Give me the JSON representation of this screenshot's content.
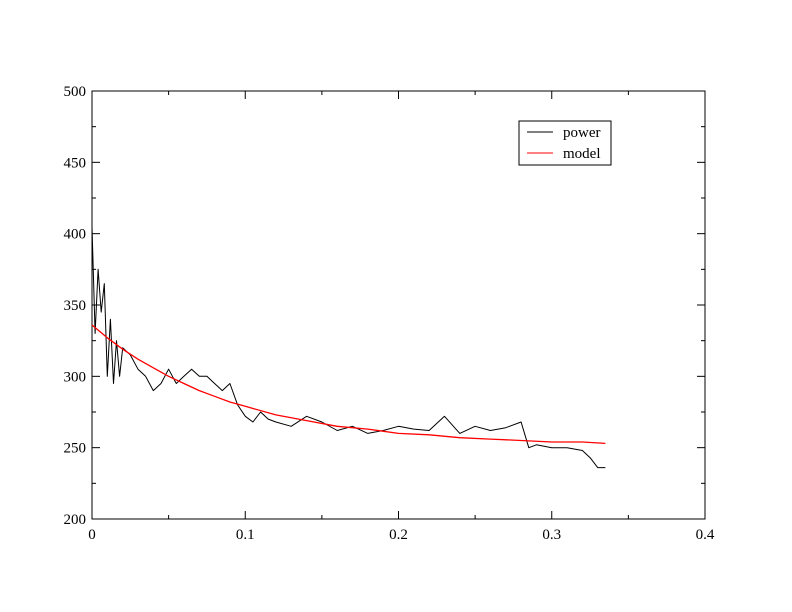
{
  "chart_data": {
    "type": "line",
    "title": "",
    "xlabel": "",
    "ylabel": "",
    "xlim": [
      0,
      0.4
    ],
    "ylim": [
      200,
      500
    ],
    "x_ticks": [
      0,
      0.1,
      0.2,
      0.3,
      0.4
    ],
    "y_ticks": [
      200,
      250,
      300,
      350,
      400,
      450,
      500
    ],
    "x_tick_labels": [
      "0",
      "0.1",
      "0.2",
      "0.3",
      "0.4"
    ],
    "y_tick_labels": [
      "200",
      "250",
      "300",
      "350",
      "400",
      "450",
      "500"
    ],
    "grid": false,
    "legend_position": "top-right",
    "series": [
      {
        "name": "power",
        "color": "#000000",
        "x": [
          0.0,
          0.002,
          0.004,
          0.006,
          0.008,
          0.01,
          0.012,
          0.014,
          0.016,
          0.018,
          0.02,
          0.025,
          0.03,
          0.035,
          0.04,
          0.045,
          0.05,
          0.055,
          0.06,
          0.065,
          0.07,
          0.075,
          0.08,
          0.085,
          0.09,
          0.095,
          0.1,
          0.105,
          0.11,
          0.115,
          0.12,
          0.13,
          0.14,
          0.15,
          0.16,
          0.17,
          0.18,
          0.19,
          0.2,
          0.21,
          0.22,
          0.23,
          0.24,
          0.25,
          0.26,
          0.27,
          0.28,
          0.285,
          0.29,
          0.3,
          0.31,
          0.32,
          0.325,
          0.33,
          0.335
        ],
        "y": [
          405,
          330,
          375,
          345,
          365,
          300,
          340,
          295,
          325,
          300,
          320,
          315,
          305,
          300,
          290,
          295,
          305,
          295,
          300,
          305,
          300,
          300,
          295,
          290,
          295,
          280,
          272,
          268,
          275,
          270,
          268,
          265,
          272,
          268,
          262,
          265,
          260,
          262,
          265,
          263,
          262,
          272,
          260,
          265,
          262,
          264,
          268,
          250,
          252,
          250,
          250,
          248,
          243,
          236,
          236
        ]
      },
      {
        "name": "model",
        "color": "#ff0000",
        "x": [
          0.0,
          0.01,
          0.02,
          0.03,
          0.04,
          0.05,
          0.06,
          0.07,
          0.08,
          0.09,
          0.1,
          0.12,
          0.14,
          0.16,
          0.18,
          0.2,
          0.22,
          0.24,
          0.26,
          0.28,
          0.3,
          0.32,
          0.335
        ],
        "y": [
          336,
          327,
          319,
          312,
          306,
          300,
          295,
          290,
          286,
          282,
          279,
          273,
          269,
          265,
          263,
          260,
          259,
          257,
          256,
          255,
          254,
          254,
          253
        ]
      }
    ]
  }
}
